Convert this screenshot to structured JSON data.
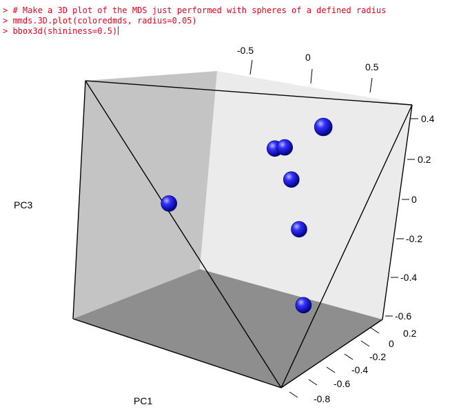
{
  "console": {
    "lines": [
      "> # Make a 3D plot of the MDS just performed with spheres of a defined radius",
      "> mmds.3D.plot(coloredmds, radius=0.05)",
      "> bbox3d(shininess=0.5)"
    ]
  },
  "chart_data": {
    "type": "scatter",
    "dimensions": 3,
    "xlabel": "PC1",
    "ylabel": "",
    "zlabel": "PC3",
    "top_axis_ticks": [
      "-0.5",
      "0",
      "0.5"
    ],
    "right_axis_ticks": [
      "0.4",
      "0.2",
      "0",
      "-0.2",
      "-0.4",
      "-0.6"
    ],
    "bottom_axis_ticks": [
      "0.2",
      "0",
      "-0.2",
      "-0.4",
      "-0.6",
      "-0.8"
    ],
    "point_color": "#1010e0",
    "box_colors": {
      "back_wall": "#ebebeb",
      "left_wall": "#c2c2c2",
      "floor": "#8a8a8a"
    },
    "points": [
      {
        "pc1": -0.78,
        "pc2": 0.0,
        "pc3": -0.05
      },
      {
        "pc1": 0.18,
        "pc2": 0.0,
        "pc3": 0.3
      },
      {
        "pc1": 0.27,
        "pc2": 0.0,
        "pc3": 0.31
      },
      {
        "pc1": 0.33,
        "pc2": 0.0,
        "pc3": 0.13
      },
      {
        "pc1": 0.4,
        "pc2": 0.0,
        "pc3": -0.15
      },
      {
        "pc1": 0.44,
        "pc2": 0.0,
        "pc3": -0.58
      },
      {
        "pc1": 0.62,
        "pc2": 0.0,
        "pc3": 0.44
      }
    ]
  }
}
